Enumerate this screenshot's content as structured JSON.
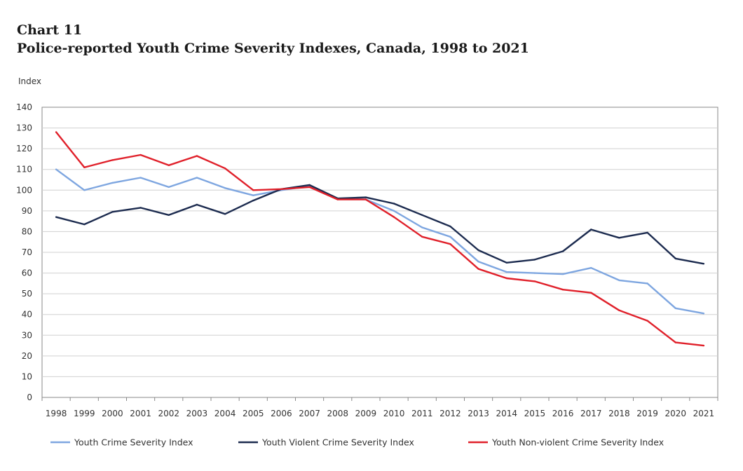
{
  "header": {
    "chart_number": "Chart 11",
    "title": "Police-reported Youth Crime Severity Indexes, Canada, 1998 to 2021"
  },
  "chart_data": {
    "type": "line",
    "title": "Police-reported Youth Crime Severity Indexes, Canada, 1998 to 2021",
    "ylabel": "Index",
    "xlabel": "",
    "ylim": [
      0,
      140
    ],
    "yticks": [
      0,
      10,
      20,
      30,
      40,
      50,
      60,
      70,
      80,
      90,
      100,
      110,
      120,
      130,
      140
    ],
    "grid": true,
    "legend": "bottom",
    "categories": [
      "1998",
      "1999",
      "2000",
      "2001",
      "2002",
      "2003",
      "2004",
      "2005",
      "2006",
      "2007",
      "2008",
      "2009",
      "2010",
      "2011",
      "2012",
      "2013",
      "2014",
      "2015",
      "2016",
      "2017",
      "2018",
      "2019",
      "2020",
      "2021"
    ],
    "series": [
      {
        "name": "Youth Crime Severity Index",
        "color": "#7ea6e0",
        "values": [
          110,
          100,
          103.5,
          106,
          101.5,
          106,
          101,
          97.5,
          100,
          102,
          96,
          95.5,
          90,
          82,
          77.5,
          65.5,
          60.5,
          60,
          59.5,
          62.5,
          56.5,
          55,
          43,
          40.5
        ]
      },
      {
        "name": "Youth Violent Crime Severity Index",
        "color": "#1c2b4f",
        "values": [
          87,
          83.5,
          89.5,
          91.5,
          88,
          93,
          88.5,
          95,
          100.5,
          102.5,
          96,
          96.5,
          93.5,
          88,
          82.5,
          71,
          65,
          66.5,
          70.5,
          81,
          77,
          79.5,
          67,
          64.5
        ]
      },
      {
        "name": "Youth Non-violent Crime Severity Index",
        "color": "#e0202a",
        "values": [
          128,
          111,
          114.5,
          117,
          112,
          116.5,
          110.5,
          100,
          100.5,
          101.5,
          95.5,
          95.5,
          87,
          77.5,
          74,
          62,
          57.5,
          56,
          52,
          50.5,
          42,
          37,
          26.5,
          25
        ]
      }
    ]
  }
}
